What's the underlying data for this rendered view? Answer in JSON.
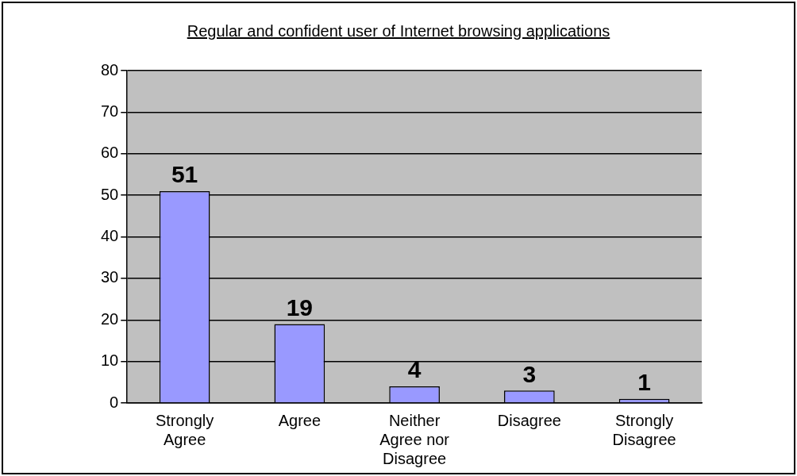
{
  "chart_data": {
    "type": "bar",
    "title": "Regular and confident user of Internet browsing applications",
    "categories": [
      "Strongly Agree",
      "Agree",
      "Neither Agree nor Disagree",
      "Disagree",
      "Strongly Disagree"
    ],
    "values": [
      51,
      19,
      4,
      3,
      1
    ],
    "color": "#9999ff",
    "ylim": [
      0,
      80
    ],
    "yticks": [
      0,
      10,
      20,
      30,
      40,
      50,
      60,
      70,
      80
    ],
    "grid": "y",
    "data_labels": true,
    "legend": false
  }
}
